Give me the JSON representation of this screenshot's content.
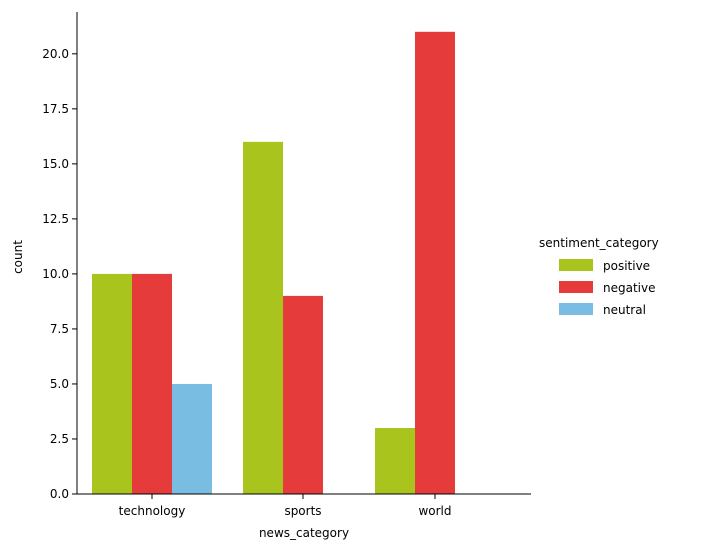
{
  "chart_data": {
    "type": "bar",
    "title": "",
    "xlabel": "news_category",
    "ylabel": "count",
    "categories": [
      "technology",
      "sports",
      "world"
    ],
    "series": [
      {
        "name": "positive",
        "color": "#a8c41d",
        "values": [
          10,
          16,
          3
        ]
      },
      {
        "name": "negative",
        "color": "#e63b3b",
        "values": [
          10,
          9,
          21
        ]
      },
      {
        "name": "neutral",
        "color": "#7abde3",
        "values": [
          5,
          0,
          0
        ]
      }
    ],
    "ylim": [
      0,
      21.9
    ],
    "yticks": [
      "0.0",
      "2.5",
      "5.0",
      "7.5",
      "10.0",
      "12.5",
      "15.0",
      "17.5",
      "20.0"
    ],
    "grid": false,
    "legend": {
      "title": "sentiment_category",
      "placement": "right"
    }
  }
}
